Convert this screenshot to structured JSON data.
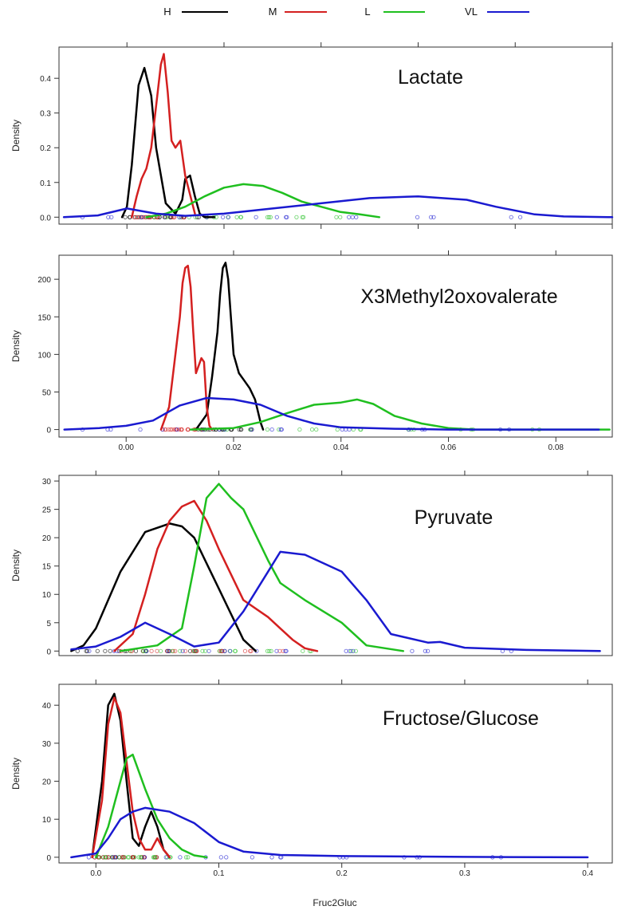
{
  "legend": {
    "entries": [
      {
        "label": "H",
        "color": "#000000"
      },
      {
        "label": "M",
        "color": "#d42020"
      },
      {
        "label": "L",
        "color": "#1fbf1f"
      },
      {
        "label": "VL",
        "color": "#1a1ad0"
      }
    ],
    "placement": "top-center"
  },
  "chart_data": [
    {
      "type": "line",
      "title": "Lactate",
      "ylabel": "Density",
      "xlabel": "",
      "xlim": [
        -0.07,
        0.5
      ],
      "ylim": [
        -0.02,
        0.49
      ],
      "yticks": [
        0.0,
        0.1,
        0.2,
        0.3,
        0.4
      ],
      "ytick_labels": [
        "0.0",
        "0.1",
        "0.2",
        "0.3",
        "0.4"
      ],
      "xticks": [
        0.0,
        0.1,
        0.2,
        0.3,
        0.4,
        0.5
      ],
      "xtick_labels": [
        "",
        "",
        "",
        "",
        "",
        ""
      ],
      "top_ticks": [
        0.0,
        0.1,
        0.2,
        0.3,
        0.4,
        0.5
      ],
      "grid": false,
      "series": [
        {
          "name": "H",
          "x": [
            -0.005,
            0.0,
            0.005,
            0.012,
            0.018,
            0.025,
            0.03,
            0.04,
            0.05,
            0.057,
            0.06,
            0.065,
            0.07,
            0.075,
            0.08,
            0.09
          ],
          "y": [
            0.0,
            0.03,
            0.15,
            0.38,
            0.43,
            0.35,
            0.2,
            0.04,
            0.01,
            0.05,
            0.11,
            0.12,
            0.06,
            0.01,
            0.0,
            0.0
          ]
        },
        {
          "name": "M",
          "x": [
            0.005,
            0.01,
            0.015,
            0.02,
            0.025,
            0.03,
            0.035,
            0.038,
            0.042,
            0.046,
            0.05,
            0.055,
            0.06,
            0.07
          ],
          "y": [
            0.0,
            0.06,
            0.11,
            0.14,
            0.2,
            0.32,
            0.44,
            0.47,
            0.36,
            0.22,
            0.2,
            0.22,
            0.12,
            0.01
          ]
        },
        {
          "name": "L",
          "x": [
            0.02,
            0.04,
            0.06,
            0.08,
            0.1,
            0.12,
            0.14,
            0.16,
            0.18,
            0.2,
            0.22,
            0.24,
            0.26
          ],
          "y": [
            0.0,
            0.01,
            0.03,
            0.06,
            0.085,
            0.095,
            0.09,
            0.07,
            0.045,
            0.03,
            0.015,
            0.008,
            0.0
          ]
        },
        {
          "name": "VL",
          "x": [
            -0.065,
            -0.03,
            0.0,
            0.03,
            0.06,
            0.1,
            0.15,
            0.2,
            0.25,
            0.3,
            0.35,
            0.38,
            0.42,
            0.45,
            0.5
          ],
          "y": [
            0.0,
            0.005,
            0.025,
            0.01,
            0.004,
            0.01,
            0.025,
            0.04,
            0.055,
            0.06,
            0.05,
            0.03,
            0.008,
            0.002,
            0.0
          ]
        }
      ]
    },
    {
      "type": "line",
      "title": "X3Methyl2oxovalerate",
      "ylabel": "Density",
      "xlabel": "",
      "xlim": [
        -0.0125,
        0.0905
      ],
      "ylim": [
        -10,
        232
      ],
      "yticks": [
        0,
        50,
        100,
        150,
        200
      ],
      "ytick_labels": [
        "0",
        "50",
        "100",
        "150",
        "200"
      ],
      "xticks": [
        0.0,
        0.02,
        0.04,
        0.06,
        0.08
      ],
      "xtick_labels": [
        "0.00",
        "0.02",
        "0.04",
        "0.06",
        "0.08"
      ],
      "top_ticks": [
        0.0,
        0.02,
        0.04,
        0.06,
        0.08
      ],
      "grid": false,
      "series": [
        {
          "name": "H",
          "x": [
            0.013,
            0.015,
            0.016,
            0.017,
            0.0175,
            0.018,
            0.0185,
            0.019,
            0.0195,
            0.02,
            0.021,
            0.022,
            0.023,
            0.024,
            0.025,
            0.0255
          ],
          "y": [
            0,
            20,
            70,
            130,
            180,
            215,
            222,
            200,
            150,
            100,
            75,
            65,
            55,
            40,
            10,
            0
          ]
        },
        {
          "name": "M",
          "x": [
            0.0065,
            0.008,
            0.009,
            0.01,
            0.0105,
            0.011,
            0.0115,
            0.012,
            0.0125,
            0.013,
            0.014,
            0.0145,
            0.015,
            0.0155,
            0.016
          ],
          "y": [
            0,
            30,
            90,
            150,
            195,
            215,
            218,
            190,
            130,
            75,
            95,
            90,
            30,
            5,
            0
          ]
        },
        {
          "name": "L",
          "x": [
            0.012,
            0.02,
            0.025,
            0.03,
            0.035,
            0.04,
            0.043,
            0.046,
            0.05,
            0.055,
            0.06,
            0.065,
            0.09
          ],
          "y": [
            0,
            2,
            10,
            22,
            33,
            36,
            40,
            34,
            18,
            8,
            2,
            0,
            0
          ]
        },
        {
          "name": "VL",
          "x": [
            -0.0115,
            -0.005,
            0.0,
            0.005,
            0.01,
            0.015,
            0.02,
            0.025,
            0.03,
            0.035,
            0.04,
            0.05,
            0.06,
            0.07,
            0.08,
            0.088
          ],
          "y": [
            0,
            2,
            5,
            12,
            32,
            42,
            40,
            33,
            18,
            8,
            3,
            1,
            0,
            0,
            0,
            0
          ]
        }
      ]
    },
    {
      "type": "line",
      "title": "Pyruvate",
      "ylabel": "Density",
      "xlabel": "",
      "xlim": [
        -0.03,
        0.42
      ],
      "ylim": [
        -0.8,
        31
      ],
      "yticks": [
        0,
        5,
        10,
        15,
        20,
        25,
        30
      ],
      "ytick_labels": [
        "0",
        "5",
        "10",
        "15",
        "20",
        "25",
        "30"
      ],
      "xticks": [],
      "xtick_labels": [],
      "top_ticks": [
        0.0,
        0.1,
        0.2,
        0.3,
        0.4
      ],
      "grid": false,
      "series": [
        {
          "name": "H",
          "x": [
            -0.02,
            -0.01,
            0.0,
            0.02,
            0.04,
            0.06,
            0.07,
            0.08,
            0.1,
            0.12,
            0.13
          ],
          "y": [
            0,
            1,
            4,
            14,
            21,
            22.5,
            22,
            20,
            11,
            2,
            0
          ]
        },
        {
          "name": "M",
          "x": [
            0.015,
            0.03,
            0.04,
            0.05,
            0.06,
            0.07,
            0.08,
            0.09,
            0.1,
            0.12,
            0.14,
            0.15,
            0.16,
            0.17,
            0.18
          ],
          "y": [
            0,
            3,
            10,
            18,
            23,
            25.5,
            26.5,
            23,
            18,
            9,
            6,
            4,
            2,
            0.5,
            0
          ]
        },
        {
          "name": "L",
          "x": [
            0.02,
            0.05,
            0.07,
            0.08,
            0.09,
            0.1,
            0.11,
            0.12,
            0.14,
            0.15,
            0.17,
            0.2,
            0.22,
            0.25
          ],
          "y": [
            0,
            1,
            4,
            15,
            27,
            29.5,
            27,
            25,
            16,
            12,
            9,
            5,
            1,
            0
          ]
        },
        {
          "name": "VL",
          "x": [
            -0.02,
            0.0,
            0.02,
            0.04,
            0.06,
            0.08,
            0.1,
            0.12,
            0.14,
            0.15,
            0.17,
            0.2,
            0.22,
            0.24,
            0.27,
            0.28,
            0.3,
            0.35,
            0.41
          ],
          "y": [
            0.3,
            0.8,
            2.5,
            5,
            3,
            0.8,
            1.5,
            7,
            14,
            17.5,
            17,
            14,
            9,
            3,
            1.5,
            1.6,
            0.6,
            0.2,
            0
          ]
        }
      ]
    },
    {
      "type": "line",
      "title": "Fructose/Glucose",
      "ylabel": "Density",
      "xlabel": "Fruc2Gluc",
      "xlim": [
        -0.03,
        0.42
      ],
      "ylim": [
        -1.5,
        45.5
      ],
      "yticks": [
        0,
        10,
        20,
        30,
        40
      ],
      "ytick_labels": [
        "0",
        "10",
        "20",
        "30",
        "40"
      ],
      "xticks": [
        0.0,
        0.1,
        0.2,
        0.3,
        0.4
      ],
      "xtick_labels": [
        "0.0",
        "0.1",
        "0.2",
        "0.3",
        "0.4"
      ],
      "top_ticks": [
        0.0,
        0.1,
        0.2,
        0.3,
        0.4
      ],
      "grid": false,
      "series": [
        {
          "name": "H",
          "x": [
            -0.003,
            0.005,
            0.01,
            0.015,
            0.02,
            0.025,
            0.03,
            0.035,
            0.04,
            0.045,
            0.05,
            0.055,
            0.06
          ],
          "y": [
            0,
            20,
            40,
            43,
            36,
            20,
            5,
            3,
            8,
            12,
            8,
            2,
            0
          ]
        },
        {
          "name": "M",
          "x": [
            -0.003,
            0.005,
            0.01,
            0.015,
            0.02,
            0.025,
            0.03,
            0.035,
            0.04,
            0.045,
            0.05,
            0.055,
            0.06
          ],
          "y": [
            0,
            15,
            35,
            42,
            38,
            25,
            12,
            5,
            2,
            2,
            5,
            2,
            0
          ]
        },
        {
          "name": "L",
          "x": [
            0.0,
            0.01,
            0.02,
            0.025,
            0.03,
            0.04,
            0.05,
            0.06,
            0.07,
            0.08,
            0.09
          ],
          "y": [
            0,
            8,
            20,
            26,
            27,
            18,
            10,
            5,
            2,
            0.5,
            0
          ]
        },
        {
          "name": "VL",
          "x": [
            -0.02,
            0.0,
            0.01,
            0.02,
            0.03,
            0.04,
            0.06,
            0.08,
            0.1,
            0.12,
            0.15,
            0.2,
            0.3,
            0.4
          ],
          "y": [
            0,
            1,
            5,
            10,
            12,
            13,
            12,
            9,
            4,
            1.5,
            0.6,
            0.3,
            0.1,
            0
          ]
        }
      ]
    }
  ]
}
